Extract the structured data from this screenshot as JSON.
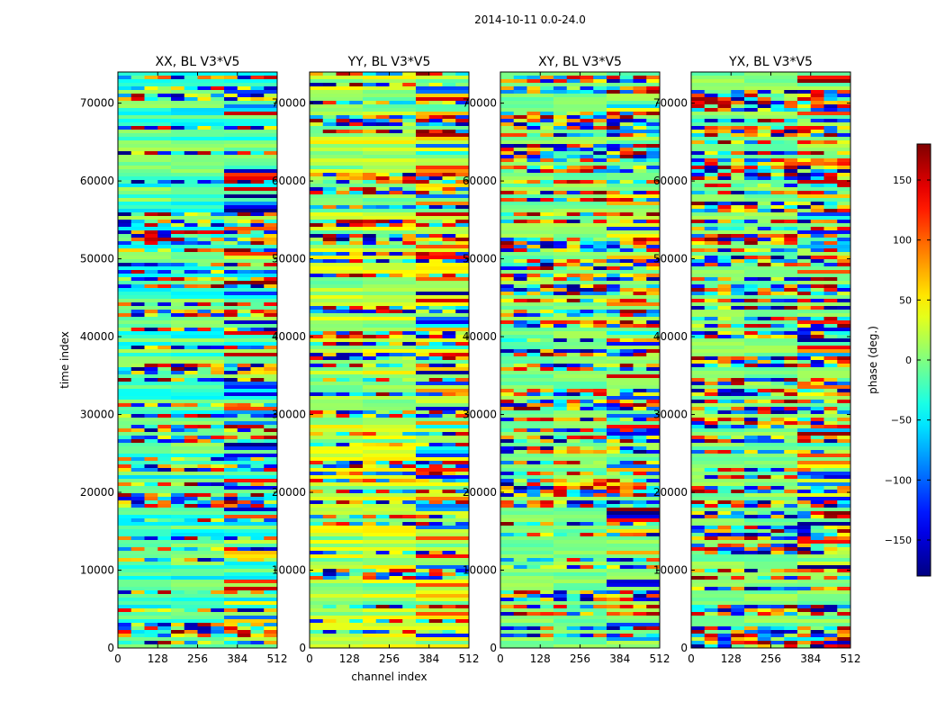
{
  "figure": {
    "suptitle": "2014-10-11 0.0-24.0"
  },
  "chart_data": [
    {
      "type": "heatmap",
      "title": "XX, BL V3*V5",
      "xlabel": "",
      "ylabel": "time index",
      "xlim": [
        0,
        512
      ],
      "ylim": [
        0,
        74000
      ],
      "xticks": [
        0,
        128,
        256,
        384,
        512
      ],
      "yticks": [
        0,
        10000,
        20000,
        30000,
        40000,
        50000,
        60000,
        70000
      ],
      "value_range": [
        -180,
        180
      ]
    },
    {
      "type": "heatmap",
      "title": "YY, BL V3*V5",
      "xlabel": "channel index",
      "ylabel": "",
      "xlim": [
        0,
        512
      ],
      "ylim": [
        0,
        74000
      ],
      "xticks": [
        0,
        128,
        256,
        384,
        512
      ],
      "yticks": [
        0,
        10000,
        20000,
        30000,
        40000,
        50000,
        60000,
        70000
      ],
      "value_range": [
        -180,
        180
      ]
    },
    {
      "type": "heatmap",
      "title": "XY, BL V3*V5",
      "xlabel": "",
      "ylabel": "",
      "xlim": [
        0,
        512
      ],
      "ylim": [
        0,
        74000
      ],
      "xticks": [
        0,
        128,
        256,
        384,
        512
      ],
      "yticks": [
        0,
        10000,
        20000,
        30000,
        40000,
        50000,
        60000,
        70000
      ],
      "value_range": [
        -180,
        180
      ]
    },
    {
      "type": "heatmap",
      "title": "YX, BL V3*V5",
      "xlabel": "",
      "ylabel": "",
      "xlim": [
        0,
        512
      ],
      "ylim": [
        0,
        74000
      ],
      "xticks": [
        0,
        128,
        256,
        384,
        512
      ],
      "yticks": [
        0,
        10000,
        20000,
        30000,
        40000,
        50000,
        60000,
        70000
      ],
      "value_range": [
        -180,
        180
      ]
    }
  ],
  "colorbar": {
    "label": "phase (deg.)",
    "range": [
      -180,
      180
    ],
    "ticks": [
      -150,
      -100,
      -50,
      0,
      50,
      100,
      150
    ],
    "tick_labels": [
      "−150",
      "−100",
      "−50",
      "0",
      "50",
      "100",
      "150"
    ],
    "colormap": "jet"
  }
}
